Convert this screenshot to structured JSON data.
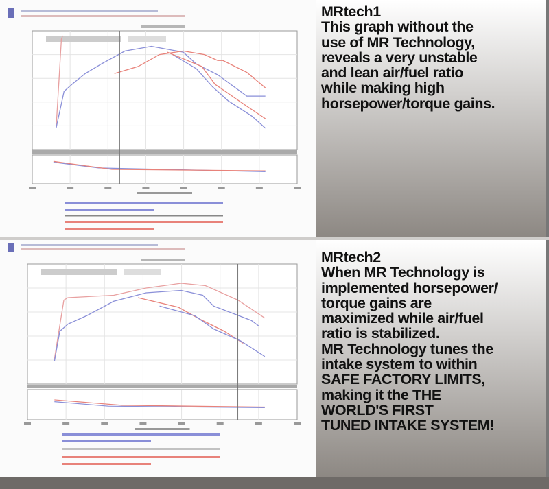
{
  "panels": [
    {
      "title": "MRtech1",
      "lines": [
        "This graph without the",
        "use of MR Technology,",
        "reveals a very unstable",
        "and lean air/fuel ratio",
        "while making high",
        "horsepower/torque gains."
      ]
    },
    {
      "title": "MRtech2",
      "lines": [
        "When MR Technology is",
        "implemented horsepower/",
        "torque gains are",
        "maximized while air/fuel",
        "ratio is stabilized.",
        "MR Technology tunes the",
        "intake system to within",
        "SAFE FACTORY LIMITS,",
        "making it the THE",
        "WORLD'S FIRST",
        "TUNED INTAKE SYSTEM!"
      ]
    }
  ],
  "colors": {
    "run_blue": "#8a8fd8",
    "run_red": "#e8827a",
    "grid": "#e4e4e4",
    "axis": "#9a9a9a"
  },
  "chart_data": [
    {
      "type": "line",
      "title": "",
      "grid": true,
      "series": [
        {
          "color": "#e8a0a0",
          "points": [
            [
              9,
              18
            ],
            [
              10,
              55
            ],
            [
              11,
              93
            ],
            [
              11.5,
              96
            ]
          ]
        },
        {
          "color": "#8a8fd8",
          "points": [
            [
              9,
              18
            ],
            [
              12,
              49
            ],
            [
              15,
              55
            ],
            [
              20,
              64
            ],
            [
              26,
              72
            ],
            [
              35,
              83
            ],
            [
              45,
              87
            ],
            [
              57,
              82
            ],
            [
              62,
              72
            ],
            [
              70,
              63
            ],
            [
              81,
              45
            ],
            [
              88,
              45
            ]
          ]
        },
        {
          "color": "#e8827a",
          "points": [
            [
              31,
              64
            ],
            [
              40,
              70
            ],
            [
              48,
              80
            ],
            [
              57,
              83
            ],
            [
              65,
              80
            ],
            [
              70,
              75
            ],
            [
              72,
              75
            ],
            [
              81,
              65
            ],
            [
              88,
              52
            ]
          ]
        },
        {
          "color": "#8a8fd8",
          "points": [
            [
              53,
              80
            ],
            [
              62,
              68
            ],
            [
              68,
              53
            ],
            [
              74,
              41
            ],
            [
              83,
              28
            ],
            [
              88,
              18
            ]
          ]
        },
        {
          "color": "#e8827a",
          "points": [
            [
              51,
              82
            ],
            [
              64,
              70
            ],
            [
              69,
              55
            ],
            [
              80,
              38
            ],
            [
              88,
              26
            ]
          ]
        }
      ],
      "afr_series": [
        {
          "color": "#8a8fd8",
          "points": [
            [
              8,
              75
            ],
            [
              25,
              55
            ],
            [
              88,
              42
            ]
          ]
        },
        {
          "color": "#e8827a",
          "points": [
            [
              8,
              78
            ],
            [
              30,
              50
            ],
            [
              88,
              45
            ]
          ]
        }
      ],
      "cursor_x": 33
    },
    {
      "type": "line",
      "title": "",
      "grid": true,
      "series": [
        {
          "color": "#e8a0a0",
          "points": [
            [
              10,
              21
            ],
            [
              13.5,
              70
            ],
            [
              15,
              72
            ],
            [
              32,
              74
            ],
            [
              44,
              80
            ],
            [
              57,
              84
            ],
            [
              66,
              82
            ],
            [
              78,
              70
            ],
            [
              88,
              55
            ]
          ]
        },
        {
          "color": "#8a8fd8",
          "points": [
            [
              10,
              19
            ],
            [
              12,
              44
            ],
            [
              15,
              50
            ],
            [
              22,
              57
            ],
            [
              32,
              69
            ],
            [
              44,
              76
            ],
            [
              57,
              78
            ],
            [
              65,
              74
            ],
            [
              69,
              65
            ],
            [
              83,
              53
            ],
            [
              86,
              48
            ]
          ]
        },
        {
          "color": "#e8827a",
          "points": [
            [
              41,
              72
            ],
            [
              56,
              64
            ],
            [
              64,
              54
            ],
            [
              73,
              44
            ],
            [
              80,
              34
            ]
          ]
        },
        {
          "color": "#8a8fd8",
          "points": [
            [
              49,
              65
            ],
            [
              62,
              57
            ],
            [
              69,
              46
            ],
            [
              79,
              36
            ],
            [
              88,
              23
            ]
          ]
        }
      ],
      "afr_series": [
        {
          "color": "#8a8fd8",
          "points": [
            [
              10,
              60
            ],
            [
              30,
              45
            ],
            [
              88,
              40
            ]
          ]
        },
        {
          "color": "#e8827a",
          "points": [
            [
              10,
              66
            ],
            [
              35,
              48
            ],
            [
              88,
              42
            ]
          ]
        }
      ],
      "cursor_x": 78
    }
  ]
}
